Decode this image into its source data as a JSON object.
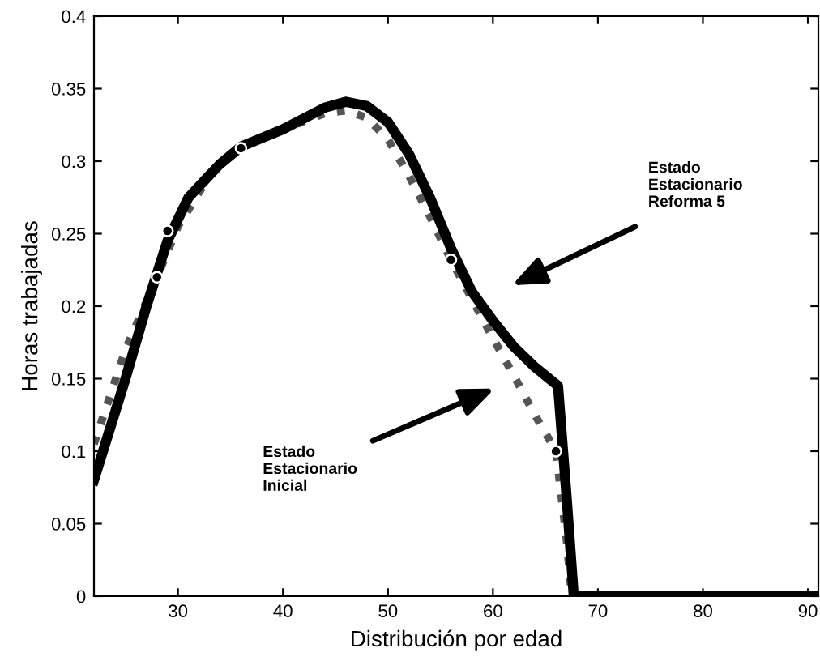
{
  "chart_data": {
    "type": "line",
    "xlabel": "Distribución por edad",
    "ylabel": "Horas trabajadas",
    "xlim": [
      22,
      91
    ],
    "xticks": [
      30,
      40,
      50,
      60,
      70,
      80,
      90
    ],
    "ylim": [
      0,
      0.4
    ],
    "yticks": [
      0,
      0.05,
      0.1,
      0.15,
      0.2,
      0.25,
      0.3,
      0.35,
      0.4
    ],
    "grid": false,
    "series": [
      {
        "color": "#000000",
        "line_style": "solid",
        "x": [
          22,
          25,
          27,
          29,
          31,
          34,
          36,
          40,
          44,
          46,
          48,
          50,
          52,
          54,
          56,
          58,
          60,
          62,
          64,
          66.2,
          67,
          67.7,
          91
        ],
        "values": [
          0.08,
          0.15,
          0.2,
          0.245,
          0.275,
          0.298,
          0.31,
          0.322,
          0.337,
          0.341,
          0.338,
          0.327,
          0.305,
          0.275,
          0.24,
          0.21,
          0.19,
          0.172,
          0.158,
          0.145,
          0.07,
          0,
          0
        ]
      },
      {
        "color": "#555555",
        "line_style": "dotted",
        "x": [
          22,
          25,
          28,
          30,
          33,
          36,
          40,
          44,
          46,
          48,
          50,
          52,
          54,
          56,
          58,
          60,
          62,
          64,
          66,
          67,
          67.5
        ],
        "values": [
          0.105,
          0.17,
          0.22,
          0.255,
          0.29,
          0.31,
          0.322,
          0.333,
          0.335,
          0.33,
          0.315,
          0.29,
          0.262,
          0.232,
          0.205,
          0.178,
          0.152,
          0.125,
          0.1,
          0.04,
          0
        ]
      },
      {
        "type": "scatter",
        "color": "#000000",
        "marker": "circle",
        "x": [
          28,
          29,
          36,
          56,
          66
        ],
        "values": [
          0.22,
          0.252,
          0.309,
          0.232,
          0.1
        ]
      }
    ],
    "annotations": [
      "Estado\nEstacionario\nReforma 5",
      "Estado\nEstacionario\nInicial"
    ]
  }
}
